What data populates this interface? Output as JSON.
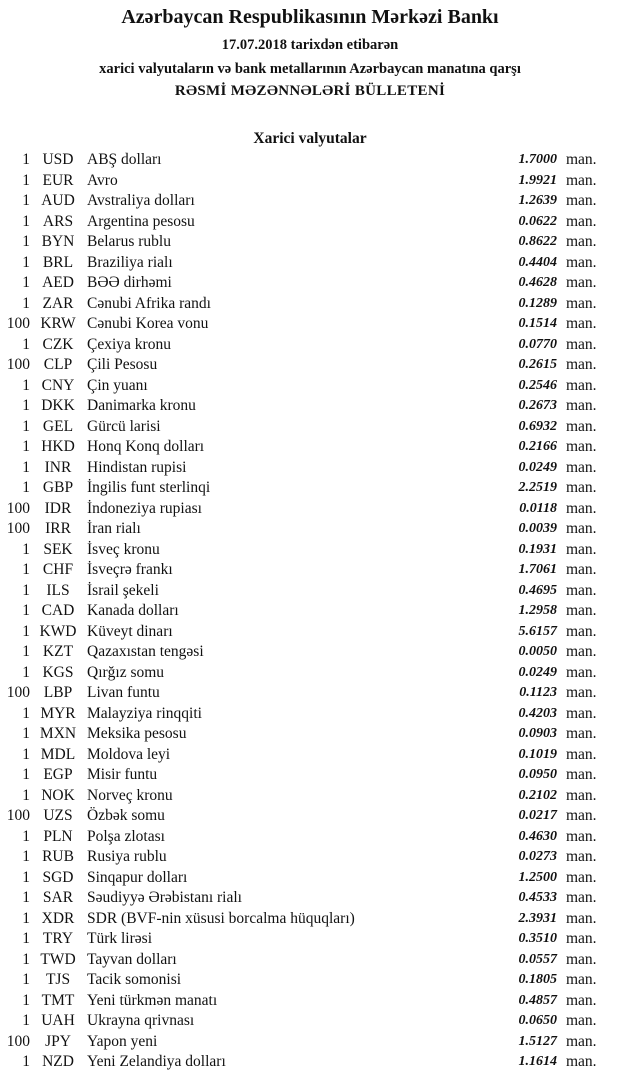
{
  "header": {
    "bank": "Azərbaycan Respublikasının Mərkəzi Bankı",
    "date_line": "17.07.2018  tarixdən etibarən",
    "subtitle": "xarici valyutaların və bank metallarının Azərbaycan manatına qarşı",
    "bulletin": "RƏSMİ MƏZƏNNƏLƏRİ BÜLLETENİ"
  },
  "section_title": "Xarici valyutalar",
  "unit": "man.",
  "rows": [
    [
      "1",
      "USD",
      "ABŞ dolları",
      "1.7000"
    ],
    [
      "1",
      "EUR",
      "Avro",
      "1.9921"
    ],
    [
      "1",
      "AUD",
      "Avstraliya dolları",
      "1.2639"
    ],
    [
      "1",
      "ARS",
      "Argentina pesosu",
      "0.0622"
    ],
    [
      "1",
      "BYN",
      "Belarus rublu",
      "0.8622"
    ],
    [
      "1",
      "BRL",
      "Braziliya rialı",
      "0.4404"
    ],
    [
      "1",
      "AED",
      "BƏƏ dirhəmi",
      "0.4628"
    ],
    [
      "1",
      "ZAR",
      "Cənubi Afrika randı",
      "0.1289"
    ],
    [
      "100",
      "KRW",
      "Cənubi Korea vonu",
      "0.1514"
    ],
    [
      "1",
      "CZK",
      "Çexiya kronu",
      "0.0770"
    ],
    [
      "100",
      "CLP",
      "Çili Pesosu",
      "0.2615"
    ],
    [
      "1",
      "CNY",
      "Çin yuanı",
      "0.2546"
    ],
    [
      "1",
      "DKK",
      "Danimarka kronu",
      "0.2673"
    ],
    [
      "1",
      "GEL",
      "Gürcü larisi",
      "0.6932"
    ],
    [
      "1",
      "HKD",
      "Honq Konq dolları",
      "0.2166"
    ],
    [
      "1",
      "INR",
      "Hindistan rupisi",
      "0.0249"
    ],
    [
      "1",
      "GBP",
      "İngilis funt sterlinqi",
      "2.2519"
    ],
    [
      "100",
      "IDR",
      "İndoneziya rupiası",
      "0.0118"
    ],
    [
      "100",
      "IRR",
      "İran rialı",
      "0.0039"
    ],
    [
      "1",
      "SEK",
      "İsveç kronu",
      "0.1931"
    ],
    [
      "1",
      "CHF",
      "İsveçrə frankı",
      "1.7061"
    ],
    [
      "1",
      "ILS",
      "İsrail şekeli",
      "0.4695"
    ],
    [
      "1",
      "CAD",
      "Kanada dolları",
      "1.2958"
    ],
    [
      "1",
      "KWD",
      "Küveyt dinarı",
      "5.6157"
    ],
    [
      "1",
      "KZT",
      "Qazaxıstan tengəsi",
      "0.0050"
    ],
    [
      "1",
      "KGS",
      "Qırğız somu",
      "0.0249"
    ],
    [
      "100",
      "LBP",
      "Livan funtu",
      "0.1123"
    ],
    [
      "1",
      "MYR",
      "Malayziya rinqqiti",
      "0.4203"
    ],
    [
      "1",
      "MXN",
      "Meksika pesosu",
      "0.0903"
    ],
    [
      "1",
      "MDL",
      "Moldova leyi",
      "0.1019"
    ],
    [
      "1",
      "EGP",
      "Misir funtu",
      "0.0950"
    ],
    [
      "1",
      "NOK",
      "Norveç kronu",
      "0.2102"
    ],
    [
      "100",
      "UZS",
      "Özbək somu",
      "0.0217"
    ],
    [
      "1",
      "PLN",
      "Polşa zlotası",
      "0.4630"
    ],
    [
      "1",
      "RUB",
      "Rusiya rublu",
      "0.0273"
    ],
    [
      "1",
      "SGD",
      "Sinqapur dolları",
      "1.2500"
    ],
    [
      "1",
      "SAR",
      "Səudiyyə Ərəbistanı rialı",
      "0.4533"
    ],
    [
      "1",
      "XDR",
      "SDR (BVF-nin xüsusi borcalma hüquqları)",
      "2.3931"
    ],
    [
      "1",
      "TRY",
      "Türk lirəsi",
      "0.3510"
    ],
    [
      "1",
      "TWD",
      "Tayvan dolları",
      "0.0557"
    ],
    [
      "1",
      "TJS",
      "Tacik somonisi",
      "0.1805"
    ],
    [
      "1",
      "TMT",
      "Yeni türkmən manatı",
      "0.4857"
    ],
    [
      "1",
      "UAH",
      "Ukrayna qrivnası",
      "0.0650"
    ],
    [
      "100",
      "JPY",
      "Yapon yeni",
      "1.5127"
    ],
    [
      "1",
      "NZD",
      "Yeni Zelandiya dolları",
      "1.1614"
    ]
  ]
}
